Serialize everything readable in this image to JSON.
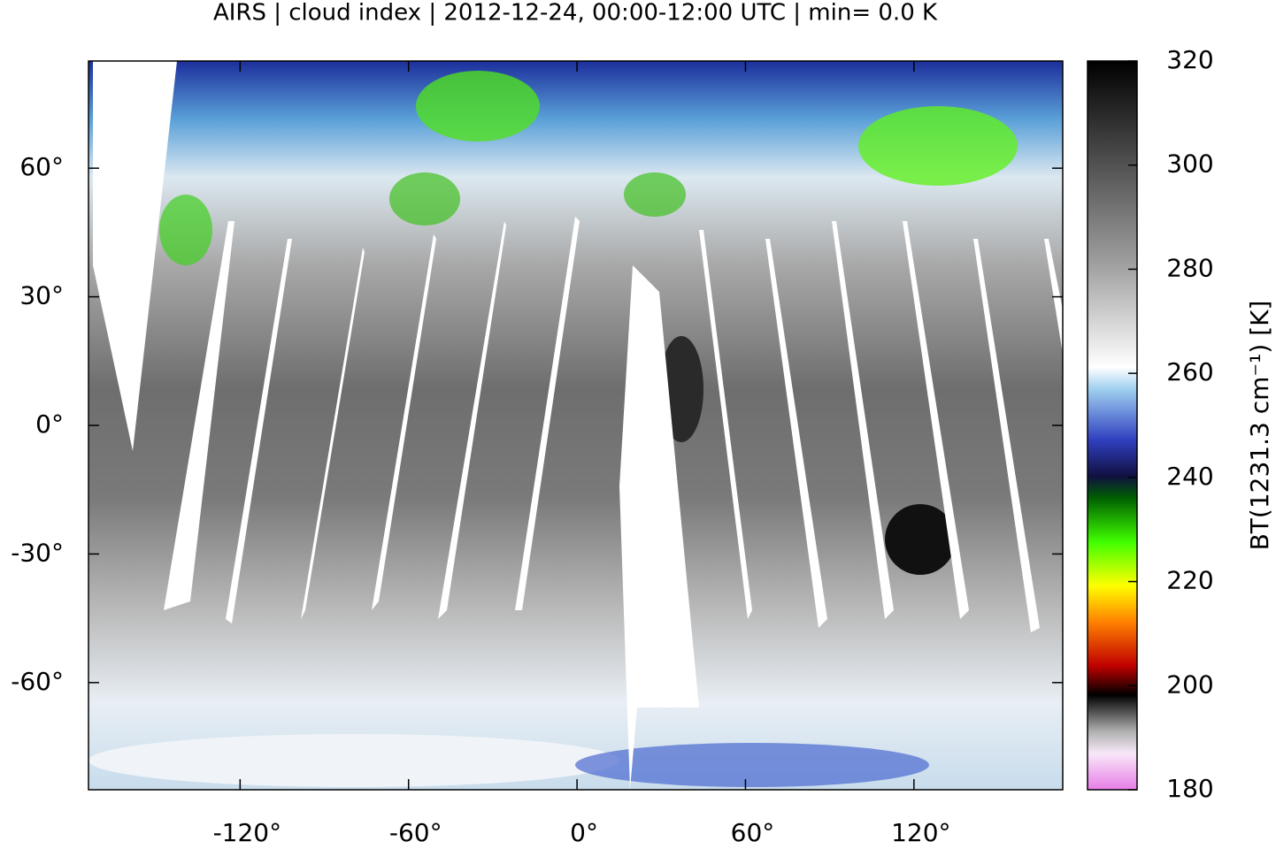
{
  "chart_data": {
    "type": "map",
    "title": "AIRS | cloud index | 2012-12-24, 00:00-12:00 UTC | min= 0.0 K",
    "xlim": [
      -174,
      173
    ],
    "ylim": [
      -85,
      85
    ],
    "xticks": [
      {
        "value": -120,
        "label": "-120°"
      },
      {
        "value": -60,
        "label": "-60°"
      },
      {
        "value": 0,
        "label": "0°"
      },
      {
        "value": 60,
        "label": "60°"
      },
      {
        "value": 120,
        "label": "120°"
      }
    ],
    "yticks": [
      {
        "value": 60,
        "label": "60°"
      },
      {
        "value": 30,
        "label": "30°"
      },
      {
        "value": 0,
        "label": "0°"
      },
      {
        "value": -30,
        "label": "-30°"
      },
      {
        "value": -60,
        "label": "-60°"
      }
    ],
    "colorbar": {
      "label": "BT(1231.3 cm⁻¹) [K]",
      "lim": [
        180,
        320
      ],
      "ticks": [
        180,
        200,
        220,
        240,
        260,
        280,
        300,
        320
      ]
    }
  }
}
